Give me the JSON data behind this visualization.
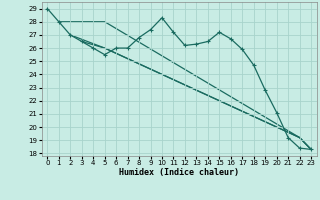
{
  "xlabel": "Humidex (Indice chaleur)",
  "background_color": "#c8ece4",
  "grid_color": "#a8d4cc",
  "line_color": "#1a6b60",
  "xlim": [
    -0.5,
    23.5
  ],
  "ylim": [
    17.8,
    29.5
  ],
  "yticks": [
    18,
    19,
    20,
    21,
    22,
    23,
    24,
    25,
    26,
    27,
    28,
    29
  ],
  "xticks": [
    0,
    1,
    2,
    3,
    4,
    5,
    6,
    7,
    8,
    9,
    10,
    11,
    12,
    13,
    14,
    15,
    16,
    17,
    18,
    19,
    20,
    21,
    22,
    23
  ],
  "series_main": {
    "x": [
      0,
      1,
      2,
      3,
      4,
      5,
      6,
      7,
      8,
      9,
      10,
      11,
      12,
      13,
      14,
      15,
      16,
      17,
      18,
      19,
      20,
      21,
      22,
      23
    ],
    "y": [
      29.0,
      28.0,
      27.0,
      26.5,
      26.0,
      25.5,
      26.0,
      26.0,
      26.8,
      27.4,
      28.3,
      27.2,
      26.2,
      26.3,
      26.5,
      27.2,
      26.7,
      25.9,
      24.7,
      22.8,
      21.1,
      19.2,
      18.4,
      18.3
    ]
  },
  "series_lines": [
    {
      "x": [
        1,
        5,
        22,
        23
      ],
      "y": [
        28.0,
        28.0,
        19.2,
        18.3
      ]
    },
    {
      "x": [
        2,
        5,
        22,
        23
      ],
      "y": [
        27.0,
        26.0,
        19.2,
        18.3
      ]
    },
    {
      "x": [
        3,
        5,
        22,
        23
      ],
      "y": [
        26.5,
        26.0,
        19.2,
        18.3
      ]
    }
  ],
  "xlabel_fontsize": 6,
  "tick_fontsize": 5
}
